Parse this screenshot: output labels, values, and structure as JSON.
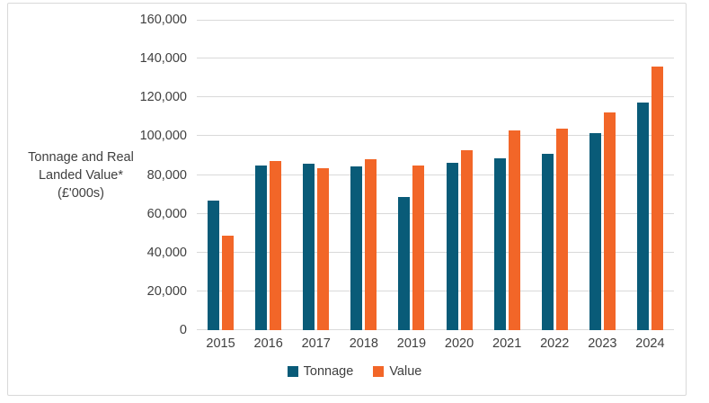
{
  "chart_data": {
    "type": "bar",
    "title": "",
    "ylabel": "Tonnage and Real Landed Value* (£'000s)",
    "ylabel_lines": [
      "Tonnage and Real",
      "Landed Value*",
      "(£'000s)"
    ],
    "xlabel": "",
    "categories": [
      "2015",
      "2016",
      "2017",
      "2018",
      "2019",
      "2020",
      "2021",
      "2022",
      "2023",
      "2024"
    ],
    "series": [
      {
        "name": "Tonnage",
        "color": "#095B78",
        "values": [
          67000,
          85000,
          86000,
          84500,
          68700,
          86200,
          88500,
          90800,
          101500,
          117500
        ]
      },
      {
        "name": "Value",
        "color": "#F26628",
        "values": [
          48500,
          87300,
          83500,
          88300,
          85000,
          92800,
          103000,
          103800,
          112200,
          135700
        ]
      }
    ],
    "ylim": [
      0,
      160000
    ],
    "ytick_step": 20000,
    "ytick_labels": [
      "0",
      "20,000",
      "40,000",
      "60,000",
      "80,000",
      "100,000",
      "120,000",
      "140,000",
      "160,000"
    ],
    "grid": true,
    "legend_position": "bottom"
  },
  "colors": {
    "grid": "#D9D9D9",
    "axis_text": "#3F3F3F",
    "border": "#D9D9D9",
    "background": "#FFFFFF"
  }
}
